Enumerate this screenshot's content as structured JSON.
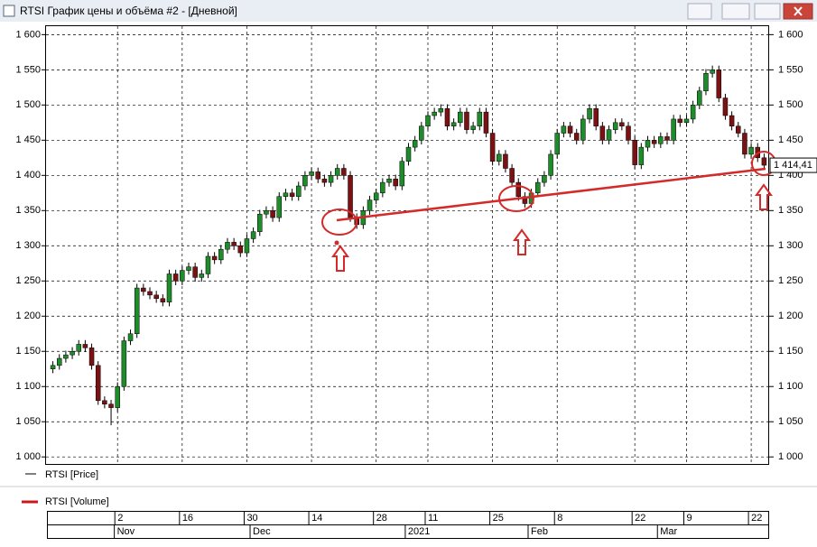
{
  "window_title": "RTSI График цены и объёма #2 - [Дневной]",
  "chart_data": {
    "type": "candlestick",
    "legend": [
      "RTSI [Price]",
      "RTSI [Volume]"
    ],
    "last_label": "1 414,41",
    "up_color": "#1e8c2a",
    "down_color": "#7a1214",
    "grid": true,
    "categories": [
      null,
      null,
      null,
      null,
      null,
      null,
      null,
      null,
      null,
      null,
      "2",
      null,
      null,
      null,
      null,
      null,
      null,
      null,
      null,
      null,
      "16",
      null,
      null,
      null,
      null,
      null,
      null,
      null,
      null,
      null,
      "30",
      null,
      null,
      null,
      null,
      null,
      null,
      null,
      null,
      null,
      "14",
      null,
      null,
      null,
      null,
      null,
      null,
      null,
      null,
      null,
      "28",
      null,
      null,
      null,
      null,
      null,
      null,
      null,
      "11",
      null,
      null,
      null,
      null,
      null,
      null,
      null,
      null,
      null,
      "25",
      null,
      null,
      null,
      null,
      null,
      null,
      null,
      null,
      null,
      "8",
      null,
      null,
      null,
      null,
      null,
      null,
      null,
      null,
      null,
      null,
      null,
      "22",
      null,
      null,
      null,
      null,
      null,
      null,
      null,
      "9",
      null,
      null,
      null,
      null,
      null,
      null,
      null,
      null,
      null,
      "22",
      null,
      null
    ],
    "months": [
      null,
      null,
      null,
      null,
      null,
      null,
      null,
      null,
      null,
      null,
      "Nov",
      null,
      null,
      null,
      null,
      null,
      null,
      null,
      null,
      null,
      null,
      null,
      null,
      null,
      null,
      null,
      null,
      null,
      null,
      null,
      null,
      "Dec",
      null,
      null,
      null,
      null,
      null,
      null,
      null,
      null,
      null,
      null,
      null,
      null,
      null,
      null,
      null,
      null,
      null,
      null,
      null,
      null,
      null,
      null,
      null,
      "2021",
      null,
      null,
      null,
      null,
      null,
      null,
      null,
      null,
      null,
      null,
      null,
      null,
      null,
      null,
      null,
      null,
      null,
      null,
      "Feb",
      null,
      null,
      null,
      null,
      null,
      null,
      null,
      null,
      null,
      null,
      null,
      null,
      null,
      null,
      null,
      null,
      null,
      null,
      null,
      "Mar",
      null,
      null,
      null,
      null,
      null,
      null,
      null,
      null,
      null,
      null,
      null,
      null,
      null,
      null,
      null,
      null
    ],
    "open": [
      1125,
      1130,
      1140,
      1145,
      1150,
      1160,
      1155,
      1130,
      1080,
      1075,
      1070,
      1100,
      1165,
      1175,
      1240,
      1235,
      1230,
      1225,
      1220,
      1260,
      1250,
      1265,
      1270,
      1255,
      1260,
      1285,
      1280,
      1295,
      1305,
      1300,
      1290,
      1310,
      1320,
      1345,
      1350,
      1340,
      1370,
      1375,
      1370,
      1385,
      1400,
      1405,
      1395,
      1390,
      1400,
      1410,
      1400,
      1340,
      1330,
      1350,
      1365,
      1375,
      1390,
      1395,
      1385,
      1420,
      1440,
      1450,
      1470,
      1485,
      1490,
      1495,
      1470,
      1475,
      1490,
      1465,
      1470,
      1490,
      1460,
      1420,
      1430,
      1410,
      1390,
      1370,
      1360,
      1375,
      1390,
      1400,
      1430,
      1460,
      1470,
      1460,
      1450,
      1480,
      1495,
      1470,
      1450,
      1465,
      1475,
      1470,
      1450,
      1415,
      1440,
      1450,
      1445,
      1455,
      1450,
      1480,
      1475,
      1480,
      1500,
      1520,
      1545,
      1550,
      1510,
      1485,
      1470,
      1460,
      1430,
      1440,
      1425
    ],
    "high": [
      1136,
      1146,
      1151,
      1156,
      1166,
      1166,
      1161,
      1136,
      1086,
      1081,
      1106,
      1171,
      1181,
      1246,
      1246,
      1241,
      1236,
      1231,
      1266,
      1266,
      1271,
      1276,
      1276,
      1266,
      1291,
      1291,
      1301,
      1311,
      1311,
      1306,
      1316,
      1326,
      1351,
      1356,
      1356,
      1376,
      1381,
      1381,
      1391,
      1406,
      1411,
      1411,
      1401,
      1406,
      1416,
      1416,
      1406,
      1346,
      1356,
      1371,
      1381,
      1396,
      1401,
      1401,
      1426,
      1446,
      1456,
      1476,
      1491,
      1496,
      1501,
      1501,
      1481,
      1496,
      1496,
      1476,
      1496,
      1496,
      1466,
      1436,
      1436,
      1416,
      1396,
      1376,
      1381,
      1396,
      1406,
      1436,
      1466,
      1476,
      1476,
      1466,
      1486,
      1501,
      1501,
      1476,
      1471,
      1481,
      1481,
      1476,
      1456,
      1446,
      1456,
      1456,
      1461,
      1461,
      1486,
      1486,
      1486,
      1506,
      1526,
      1551,
      1556,
      1556,
      1516,
      1491,
      1476,
      1466,
      1446,
      1446,
      1431
    ],
    "low": [
      1119,
      1124,
      1134,
      1139,
      1144,
      1149,
      1124,
      1074,
      1069,
      1045,
      1064,
      1094,
      1159,
      1169,
      1229,
      1224,
      1219,
      1214,
      1214,
      1244,
      1244,
      1259,
      1249,
      1249,
      1254,
      1274,
      1274,
      1289,
      1294,
      1284,
      1284,
      1304,
      1314,
      1339,
      1334,
      1334,
      1364,
      1364,
      1364,
      1379,
      1394,
      1389,
      1384,
      1384,
      1394,
      1394,
      1334,
      1324,
      1324,
      1344,
      1359,
      1369,
      1384,
      1379,
      1379,
      1414,
      1434,
      1444,
      1464,
      1479,
      1484,
      1464,
      1464,
      1469,
      1459,
      1459,
      1464,
      1454,
      1414,
      1414,
      1404,
      1384,
      1364,
      1354,
      1354,
      1369,
      1384,
      1394,
      1424,
      1454,
      1454,
      1444,
      1444,
      1474,
      1464,
      1444,
      1444,
      1459,
      1464,
      1444,
      1409,
      1409,
      1434,
      1439,
      1439,
      1444,
      1444,
      1469,
      1469,
      1474,
      1494,
      1514,
      1539,
      1504,
      1479,
      1464,
      1454,
      1424,
      1424,
      1419,
      1408
    ],
    "close": [
      1130,
      1140,
      1145,
      1150,
      1160,
      1155,
      1130,
      1080,
      1075,
      1070,
      1100,
      1165,
      1175,
      1240,
      1235,
      1230,
      1225,
      1220,
      1260,
      1250,
      1265,
      1270,
      1255,
      1260,
      1285,
      1280,
      1295,
      1305,
      1300,
      1290,
      1310,
      1320,
      1345,
      1350,
      1340,
      1370,
      1375,
      1370,
      1385,
      1400,
      1405,
      1395,
      1390,
      1400,
      1410,
      1400,
      1340,
      1330,
      1350,
      1365,
      1375,
      1390,
      1395,
      1385,
      1420,
      1440,
      1450,
      1470,
      1485,
      1490,
      1495,
      1470,
      1475,
      1490,
      1465,
      1470,
      1490,
      1460,
      1420,
      1430,
      1410,
      1390,
      1370,
      1360,
      1375,
      1390,
      1400,
      1430,
      1460,
      1470,
      1460,
      1450,
      1480,
      1495,
      1470,
      1450,
      1465,
      1475,
      1470,
      1450,
      1415,
      1440,
      1450,
      1445,
      1455,
      1450,
      1480,
      1475,
      1480,
      1500,
      1520,
      1545,
      1550,
      1510,
      1485,
      1470,
      1460,
      1430,
      1440,
      1425,
      1414.41
    ],
    "ylim": [
      990,
      1612
    ],
    "yticks": [
      {
        "value": 1000,
        "label": "1 000"
      },
      {
        "value": 1050,
        "label": "1 050"
      },
      {
        "value": 1100,
        "label": "1 100"
      },
      {
        "value": 1150,
        "label": "1 150"
      },
      {
        "value": 1200,
        "label": "1 200"
      },
      {
        "value": 1250,
        "label": "1 250"
      },
      {
        "value": 1300,
        "label": "1 300"
      },
      {
        "value": 1350,
        "label": "1 350"
      },
      {
        "value": 1400,
        "label": "1 400"
      },
      {
        "value": 1450,
        "label": "1 450"
      },
      {
        "value": 1500,
        "label": "1 500"
      },
      {
        "value": 1550,
        "label": "1 550"
      },
      {
        "value": 1600,
        "label": "1 600"
      }
    ]
  }
}
